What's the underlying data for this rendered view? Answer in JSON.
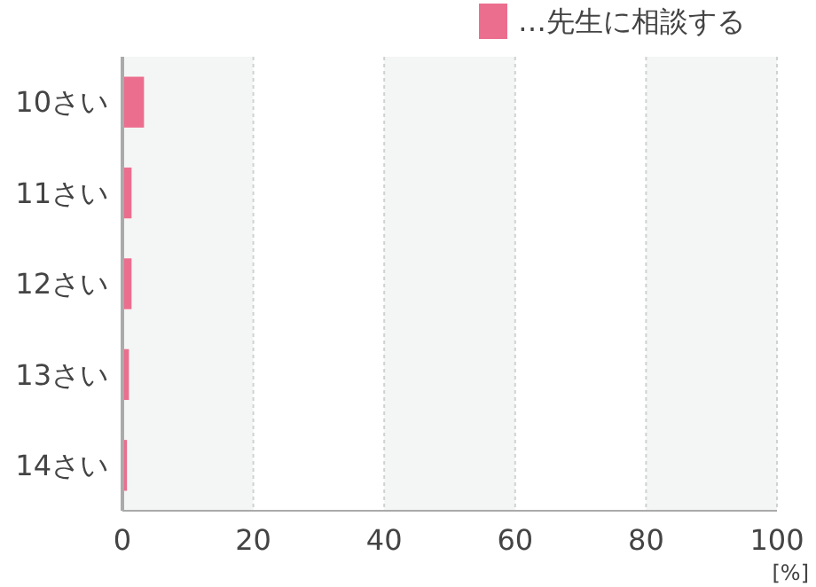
{
  "chart_data": {
    "type": "bar",
    "orientation": "horizontal",
    "categories": [
      "10さい",
      "11さい",
      "12さい",
      "13さい",
      "14さい"
    ],
    "series": [
      {
        "name": "…先生に相談する",
        "color": "#ec6e8e",
        "values": [
          3.3,
          1.4,
          1.4,
          1.0,
          0.7
        ]
      }
    ],
    "xlim": [
      0,
      100
    ],
    "xticks": [
      0,
      20,
      40,
      60,
      80,
      100
    ],
    "xlabel": "[%]",
    "grid": "x",
    "legend": "top right"
  }
}
